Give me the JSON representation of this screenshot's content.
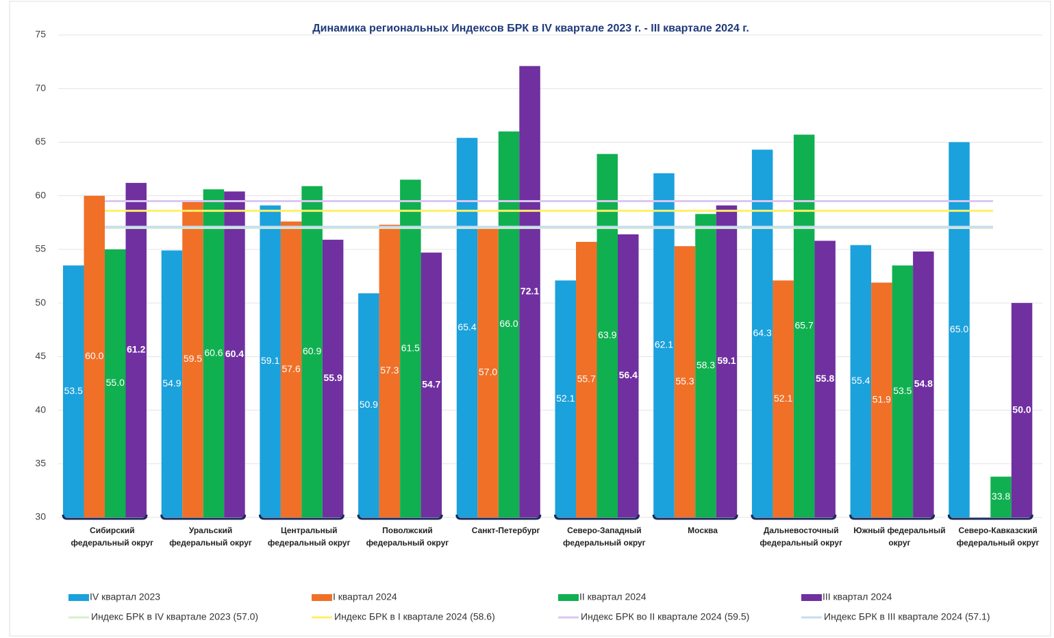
{
  "chart_data": {
    "type": "bar",
    "title": "Динамика региональных Индексов БРК в IV квартале 2023 г. - III квартале 2024 г.",
    "categories": [
      "Сибирский федеральный округ",
      "Уральский федеральный округ",
      "Центральный федеральный округ",
      "Поволжский федеральный округ",
      "Санкт-Петербург",
      "Северо-Западный федеральный округ",
      "Москва",
      "Дальневосточный федеральный округ",
      "Южный федеральный округ",
      "Северо-Кавказский федеральный округ"
    ],
    "series": [
      {
        "name": "IV квартал 2023",
        "color": "#1ba1dc",
        "values": [
          53.5,
          54.9,
          59.1,
          50.9,
          65.4,
          52.1,
          62.1,
          64.3,
          55.4,
          65.0
        ],
        "value_labels": [
          "53.5",
          "54.9",
          "59.1",
          "50.9",
          "65.4",
          "52.1",
          "62.1",
          "64.3",
          "55.4",
          "65.0"
        ]
      },
      {
        "name": "I квартал 2024",
        "color": "#f07028",
        "values": [
          60.0,
          59.5,
          57.6,
          57.3,
          57.0,
          55.7,
          55.3,
          52.1,
          51.9,
          null
        ],
        "value_labels": [
          "60.0",
          "59.5",
          "57.6",
          "57.3",
          "57.0",
          "55.7",
          "55.3",
          "52.1",
          "51.9",
          null
        ]
      },
      {
        "name": "II квартал 2024",
        "color": "#10b050",
        "values": [
          55.0,
          60.6,
          60.9,
          61.5,
          66.0,
          63.9,
          58.3,
          65.7,
          53.5,
          33.8
        ],
        "value_labels": [
          "55.0",
          "60.6",
          "60.9",
          "61.5",
          "66.0",
          "63.9",
          "58.3",
          "65.7",
          "53.5",
          "33.8"
        ]
      },
      {
        "name": "III квартал 2024",
        "color": "#7030a0",
        "values": [
          61.2,
          60.4,
          55.9,
          54.7,
          72.1,
          56.4,
          59.1,
          55.8,
          54.8,
          50.0
        ],
        "value_labels": [
          "61.2",
          "60.4",
          "55.9",
          "54.7",
          "72.1",
          "56.4",
          "59.1",
          "55.8",
          "54.8",
          "50.0"
        ],
        "bold_labels": true
      }
    ],
    "reference_lines": [
      {
        "name": "Индекс БРК в IV квартале 2023 (57.0)",
        "value": 57.0,
        "color": "#d6efcc"
      },
      {
        "name": "Индекс БРК в I квартале 2024 (58.6)",
        "value": 58.6,
        "color": "#fff066"
      },
      {
        "name": "Индекс БРК во II квартале 2024 (59.5)",
        "value": 59.5,
        "color": "#dcc6f2"
      },
      {
        "name": "Индекс БРК в III квартале 2024 (57.1)",
        "value": 57.1,
        "color": "#c6dcf0"
      }
    ],
    "ylim": [
      30,
      75
    ],
    "yticks": [
      30,
      35,
      40,
      45,
      50,
      55,
      60,
      65,
      70,
      75
    ],
    "grid": true
  }
}
